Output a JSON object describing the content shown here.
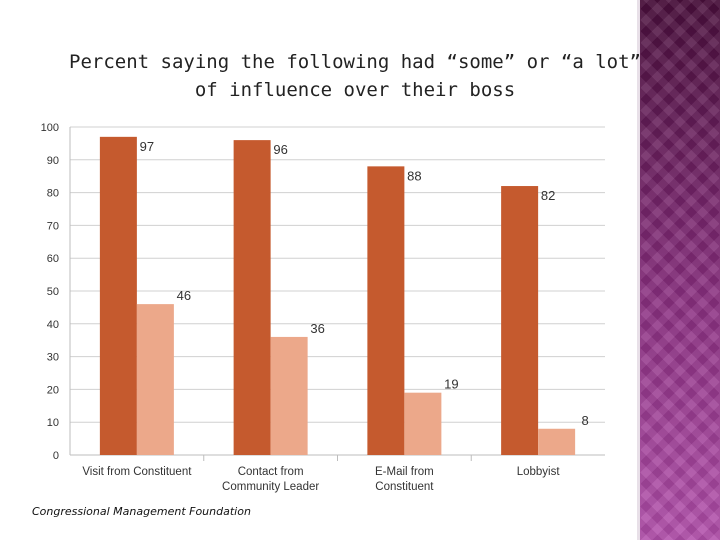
{
  "slide": {
    "title": "Percent saying the following had “some” or “a lot” of influence over their boss",
    "source": "Congressional Management Foundation",
    "accent_colors": {
      "bar_dark": "#c55a2e",
      "bar_light": "#eca88a",
      "decor": "#8a2f80"
    }
  },
  "chart_data": {
    "type": "bar",
    "title": "Percent saying the following had “some” or “a lot” of influence over their boss",
    "xlabel": "",
    "ylabel": "",
    "categories": [
      [
        "Visit from Constituent"
      ],
      [
        "Contact from",
        "Community Leader"
      ],
      [
        "E-Mail from",
        "Constituent"
      ],
      [
        "Lobbyist"
      ]
    ],
    "series": [
      {
        "values": [
          97,
          96,
          88,
          82
        ],
        "color": "#c55a2e"
      },
      {
        "values": [
          46,
          36,
          19,
          8
        ],
        "color": "#eca88a"
      }
    ],
    "ylim": [
      0,
      100
    ],
    "yticks": [
      0,
      10,
      20,
      30,
      40,
      50,
      60,
      70,
      80,
      90,
      100
    ],
    "grid": true,
    "legend": "none"
  }
}
